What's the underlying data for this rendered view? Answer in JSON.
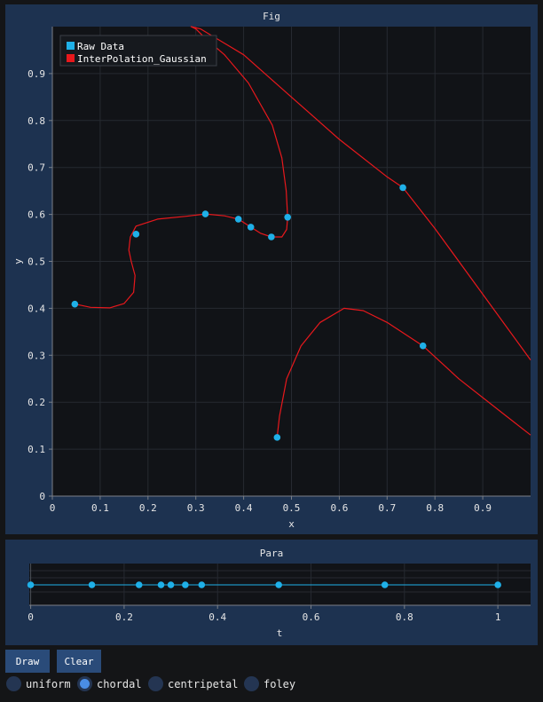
{
  "fig": {
    "title": "Fig",
    "chart_data": {
      "type": "line",
      "xlabel": "x",
      "ylabel": "y",
      "xlim": [
        0,
        1.0
      ],
      "ylim": [
        0,
        1.0
      ],
      "xticks": [
        "0",
        "0.1",
        "0.2",
        "0.3",
        "0.4",
        "0.5",
        "0.6",
        "0.7",
        "0.8",
        "0.9"
      ],
      "yticks": [
        "0",
        "0.1",
        "0.2",
        "0.3",
        "0.4",
        "0.5",
        "0.6",
        "0.7",
        "0.8",
        "0.9"
      ],
      "legend": {
        "placement": "top-left",
        "entries": [
          "Raw Data",
          "InterPolation_Gaussian"
        ]
      },
      "series": [
        {
          "name": "Raw Data",
          "type": "scatter",
          "color": "#1fb0e8",
          "points": [
            [
              0.047,
              0.409
            ],
            [
              0.175,
              0.558
            ],
            [
              0.32,
              0.601
            ],
            [
              0.389,
              0.59
            ],
            [
              0.415,
              0.573
            ],
            [
              0.458,
              0.552
            ],
            [
              0.492,
              0.594
            ],
            [
              0.733,
              0.657
            ],
            [
              0.775,
              0.32
            ],
            [
              0.47,
              0.125
            ]
          ]
        },
        {
          "name": "InterPolation_Gaussian",
          "type": "line",
          "color": "#e8181c",
          "points": [
            [
              0.047,
              0.409
            ],
            [
              0.08,
              0.402
            ],
            [
              0.12,
              0.401
            ],
            [
              0.15,
              0.41
            ],
            [
              0.17,
              0.434
            ],
            [
              0.173,
              0.47
            ],
            [
              0.165,
              0.5
            ],
            [
              0.16,
              0.524
            ],
            [
              0.163,
              0.552
            ],
            [
              0.175,
              0.575
            ],
            [
              0.22,
              0.59
            ],
            [
              0.28,
              0.596
            ],
            [
              0.32,
              0.601
            ],
            [
              0.36,
              0.597
            ],
            [
              0.389,
              0.59
            ],
            [
              0.415,
              0.573
            ],
            [
              0.435,
              0.56
            ],
            [
              0.458,
              0.552
            ],
            [
              0.48,
              0.552
            ],
            [
              0.49,
              0.568
            ],
            [
              0.492,
              0.594
            ],
            [
              0.489,
              0.65
            ],
            [
              0.48,
              0.72
            ],
            [
              0.46,
              0.79
            ],
            [
              0.41,
              0.88
            ],
            [
              0.36,
              0.94
            ],
            [
              0.32,
              0.975
            ],
            [
              0.3,
              0.995
            ],
            [
              0.29,
              1.0
            ],
            [
              0.31,
              0.995
            ],
            [
              0.4,
              0.94
            ],
            [
              0.5,
              0.85
            ],
            [
              0.6,
              0.76
            ],
            [
              0.7,
              0.68
            ],
            [
              0.733,
              0.657
            ],
            [
              0.8,
              0.57
            ],
            [
              0.9,
              0.43
            ],
            [
              1.0,
              0.29
            ]
          ]
        },
        {
          "name": "InterPolation_Gaussian",
          "type": "line",
          "color": "#e8181c",
          "points": [
            [
              0.47,
              0.125
            ],
            [
              0.475,
              0.17
            ],
            [
              0.49,
              0.25
            ],
            [
              0.52,
              0.32
            ],
            [
              0.56,
              0.37
            ],
            [
              0.61,
              0.4
            ],
            [
              0.65,
              0.395
            ],
            [
              0.7,
              0.37
            ],
            [
              0.775,
              0.32
            ],
            [
              0.85,
              0.25
            ],
            [
              0.95,
              0.17
            ],
            [
              1.0,
              0.13
            ]
          ]
        }
      ]
    }
  },
  "para": {
    "title": "Para",
    "chart_data": {
      "type": "scatter",
      "xlabel": "t",
      "xlim": [
        -0.003,
        1.07
      ],
      "xticks": [
        "0",
        "0.2",
        "0.4",
        "0.6",
        "0.8",
        "1"
      ],
      "series": [
        {
          "name": "t",
          "color": "#1fb0e8",
          "x": [
            0,
            0.131,
            0.232,
            0.279,
            0.3,
            0.331,
            0.366,
            0.531,
            0.758,
            1.0
          ]
        }
      ]
    }
  },
  "controls": {
    "draw_label": "Draw",
    "clear_label": "Clear",
    "radios": [
      {
        "label": "uniform",
        "selected": false
      },
      {
        "label": "chordal",
        "selected": true
      },
      {
        "label": "centripetal",
        "selected": false
      },
      {
        "label": "foley",
        "selected": false
      }
    ]
  }
}
